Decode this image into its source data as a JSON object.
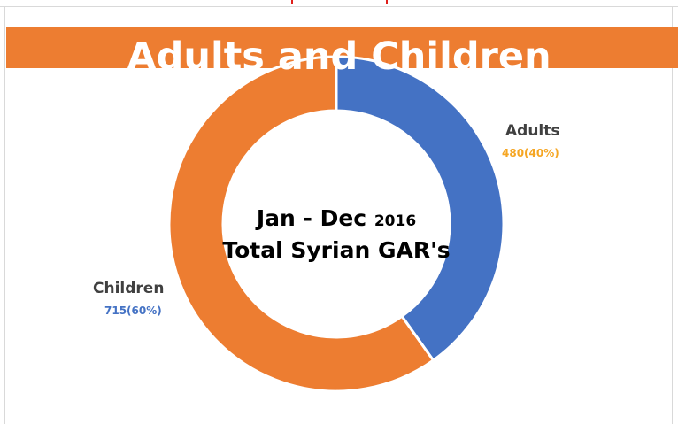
{
  "chart_data": {
    "type": "pie",
    "variant": "donut",
    "title": "Adults and Children",
    "center_text": {
      "line1_main": "Jan - Dec",
      "line1_year": "2016",
      "line2": "Total Syrian GAR's"
    },
    "categories": [
      "Adults",
      "Children"
    ],
    "values": [
      480,
      715
    ],
    "value_labels": [
      "480(40%)",
      "715(60%)"
    ],
    "colors": [
      "#4472c4",
      "#ed7d31"
    ],
    "value_label_colors": [
      "#f5a623",
      "#4472c4"
    ],
    "legend": "none"
  },
  "theme": {
    "banner_color": "#ed7d31"
  }
}
